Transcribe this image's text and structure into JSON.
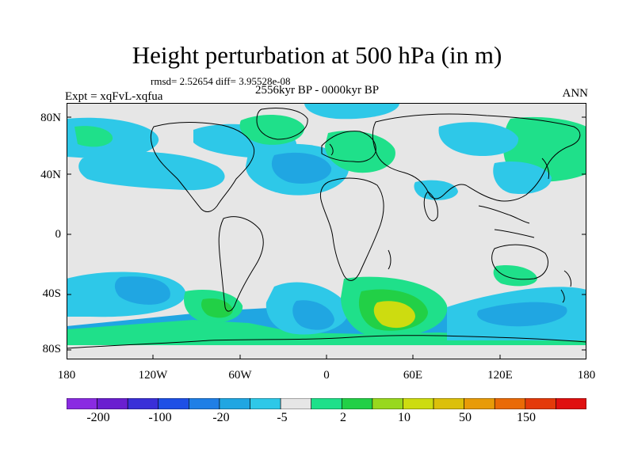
{
  "title": "Height perturbation at 500 hPa (in m)",
  "stats": "rmsd= 2.52654 diff= 3.95528e-08",
  "period": "2556kyr BP - 0000kyr BP",
  "experiment": "Expt = xqFvL-xqfua",
  "season": "ANN",
  "lat_labels": [
    "80N",
    "40N",
    "0",
    "40S",
    "80S"
  ],
  "lon_labels": [
    "180",
    "120W",
    "60W",
    "0",
    "60E",
    "120E",
    "180"
  ],
  "colorbar": {
    "colors": [
      "#8a2be2",
      "#6a1fd0",
      "#3a2fd8",
      "#1e50e6",
      "#1f7fe6",
      "#20a6e2",
      "#2ec8e8",
      "#e6e6e6",
      "#1fe08a",
      "#22d046",
      "#98d81e",
      "#cddc10",
      "#dcc00a",
      "#e89b08",
      "#ea6a06",
      "#e43a0a",
      "#e01010"
    ],
    "labels": [
      "-200",
      "-100",
      "-20",
      "-5",
      "2",
      "10",
      "50",
      "150"
    ]
  }
}
